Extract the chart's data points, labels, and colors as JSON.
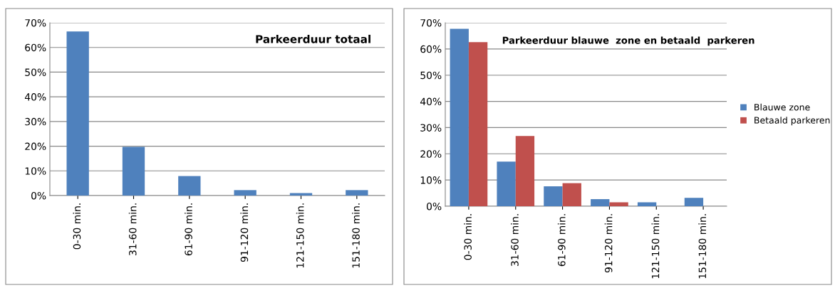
{
  "chart_data": [
    {
      "type": "bar",
      "title": "Parkeerduur totaal",
      "categories": [
        "0-30 min.",
        "31-60 min.",
        "61-90 min.",
        "91-120 min.",
        "121-150 min.",
        "151-180 min."
      ],
      "series": [
        {
          "color": "#4f81bd",
          "values": [
            66.5,
            19.7,
            7.9,
            2.2,
            1.0,
            2.2
          ]
        }
      ],
      "ylim": [
        0,
        70
      ],
      "yticks": [
        {
          "value": 0,
          "label": "0%"
        },
        {
          "value": 10,
          "label": "10%"
        },
        {
          "value": 20,
          "label": "20%"
        },
        {
          "value": 30,
          "label": "30%"
        },
        {
          "value": 40,
          "label": "40%"
        },
        {
          "value": 50,
          "label": "50%"
        },
        {
          "value": 60,
          "label": "60%"
        },
        {
          "value": 70,
          "label": "70%"
        }
      ],
      "grid": "y",
      "legend": false
    },
    {
      "type": "bar",
      "title": "Parkeerduur blauwe  zone en betaald  parkeren",
      "categories": [
        "0-30 min.",
        "31-60 min.",
        "61-90 min.",
        "91-120 min.",
        "121-150 min.",
        "151-180 min."
      ],
      "series": [
        {
          "name": "Blauwe zone",
          "color": "#4f81bd",
          "values": [
            67.7,
            17.0,
            7.6,
            2.7,
            1.5,
            3.2
          ]
        },
        {
          "name": "Betaald parkeren",
          "color": "#c0504d",
          "values": [
            62.6,
            26.8,
            8.8,
            1.5,
            0,
            0
          ]
        }
      ],
      "ylim": [
        0,
        70
      ],
      "yticks": [
        {
          "value": 0,
          "label": "0%"
        },
        {
          "value": 10,
          "label": "10%"
        },
        {
          "value": 20,
          "label": "20%"
        },
        {
          "value": 30,
          "label": "30%"
        },
        {
          "value": 40,
          "label": "40%"
        },
        {
          "value": 50,
          "label": "50%"
        },
        {
          "value": 60,
          "label": "60%"
        },
        {
          "value": 70,
          "label": "70%"
        }
      ],
      "grid": "y",
      "legend": "right"
    }
  ]
}
